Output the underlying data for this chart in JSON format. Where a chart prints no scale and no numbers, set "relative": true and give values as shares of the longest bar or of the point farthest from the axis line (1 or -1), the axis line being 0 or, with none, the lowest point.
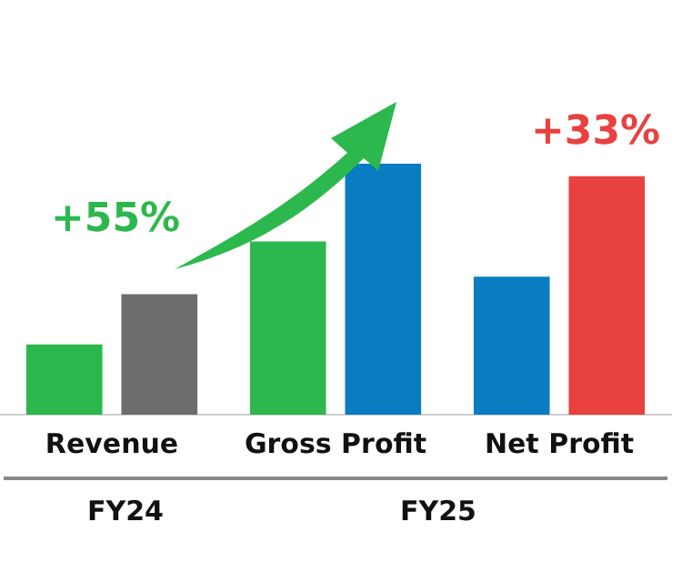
{
  "chart_data": {
    "type": "bar",
    "relative": true,
    "grid": false,
    "legend": false,
    "tick_labels": "x",
    "categories": [
      "Revenue",
      "Gross Profit",
      "Net Profit"
    ],
    "series": [
      {
        "colors": [
          "#2db84d",
          "#2db84d",
          "#0a7cc1"
        ],
        "values": [
          0.28,
          0.69,
          0.55
        ]
      },
      {
        "colors": [
          "#6d6d6d",
          "#0a7cc1",
          "#e8413f"
        ],
        "values": [
          0.48,
          1,
          0.95
        ]
      }
    ],
    "annotations": [
      "+55%",
      "+33%",
      "FY24",
      "FY25"
    ]
  }
}
